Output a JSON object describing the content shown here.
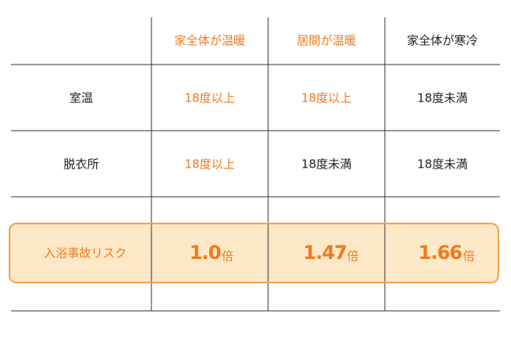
{
  "table": {
    "columns": [
      "家全体が温暖",
      "居間が温暖",
      "家全体が寒冷"
    ],
    "rows": [
      {
        "label": "室温",
        "cells": [
          "18度以上",
          "18度以上",
          "18度未満"
        ]
      },
      {
        "label": "脱衣所",
        "cells": [
          "18度以上",
          "18度未満",
          "18度未満"
        ]
      }
    ],
    "risk": {
      "label": "入浴事故リスク",
      "values": [
        "1.0",
        "1.47",
        "1.66"
      ],
      "unit": "倍"
    }
  }
}
